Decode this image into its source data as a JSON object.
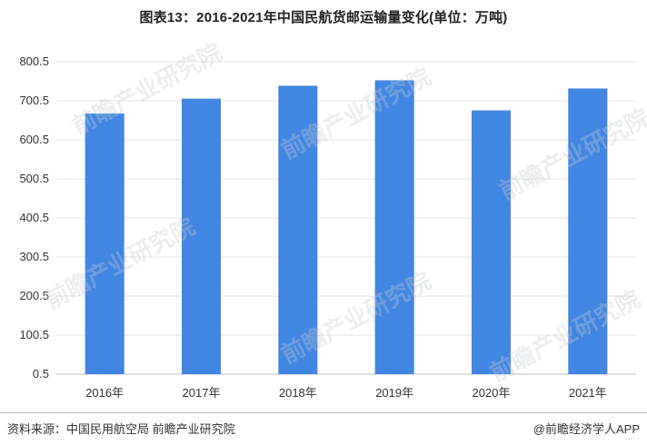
{
  "chart_data": {
    "type": "bar",
    "title": "图表13：2016-2021年中国民航货邮运输量变化(单位：万吨)",
    "categories": [
      "2016年",
      "2017年",
      "2018年",
      "2019年",
      "2020年",
      "2021年"
    ],
    "values": [
      668,
      706,
      739,
      753,
      676,
      732
    ],
    "yticks": [
      "0.5",
      "100.5",
      "200.5",
      "300.5",
      "400.5",
      "500.5",
      "600.5",
      "700.5",
      "800.5"
    ],
    "ylim": [
      0.5,
      800.5
    ],
    "grid": true,
    "legend": "none",
    "bar_color": "#4286E3"
  },
  "footer": {
    "source": "资料来源：中国民用航空局 前瞻产业研究院",
    "brand": "@前瞻经济学人APP"
  },
  "watermark": {
    "text": "前瞻产业研究院"
  }
}
